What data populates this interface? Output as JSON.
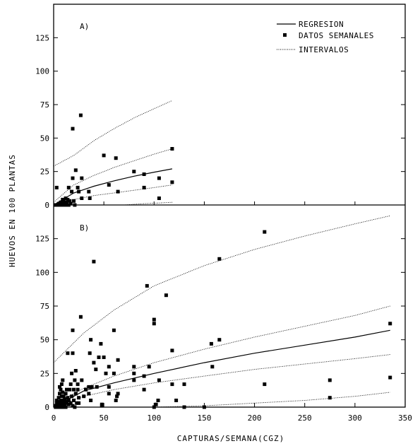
{
  "chart_data": {
    "type": "scatter",
    "ylabel": "HUEVOS EN 100 PLANTAS",
    "xlabel": "CAPTURAS/SEMANA(CGZ)",
    "xlim": [
      0,
      350
    ],
    "x_ticks": [
      "0",
      "50",
      "100",
      "150",
      "200",
      "250",
      "300",
      "350"
    ],
    "x_tick_values": [
      0,
      50,
      100,
      150,
      200,
      250,
      300,
      350
    ],
    "ylim": [
      0,
      150
    ],
    "y_ticks": [
      "0",
      "25",
      "50",
      "75",
      "100",
      "125"
    ],
    "y_tick_values": [
      0,
      25,
      50,
      75,
      100,
      125
    ],
    "grid": false,
    "legend": {
      "placement": "top-right",
      "entries": [
        "REGRESION",
        "DATOS SEMANALES",
        "INTERVALOS"
      ]
    },
    "panels": [
      {
        "label": "A)",
        "xmax": 118,
        "points": [
          [
            2,
            0
          ],
          [
            3,
            13
          ],
          [
            4,
            0
          ],
          [
            5,
            1
          ],
          [
            6,
            0
          ],
          [
            7,
            2
          ],
          [
            7,
            0
          ],
          [
            8,
            1
          ],
          [
            9,
            2
          ],
          [
            9,
            4
          ],
          [
            10,
            0
          ],
          [
            10,
            3
          ],
          [
            11,
            1
          ],
          [
            12,
            5
          ],
          [
            12,
            0
          ],
          [
            13,
            2
          ],
          [
            14,
            4
          ],
          [
            15,
            0
          ],
          [
            15,
            13
          ],
          [
            16,
            3
          ],
          [
            17,
            1
          ],
          [
            18,
            10
          ],
          [
            19,
            20
          ],
          [
            19,
            57
          ],
          [
            20,
            3
          ],
          [
            21,
            0
          ],
          [
            22,
            26
          ],
          [
            24,
            13
          ],
          [
            25,
            10
          ],
          [
            27,
            67
          ],
          [
            28,
            20
          ],
          [
            28,
            5
          ],
          [
            35,
            10
          ],
          [
            36,
            5
          ],
          [
            50,
            37
          ],
          [
            55,
            15
          ],
          [
            62,
            35
          ],
          [
            64,
            10
          ],
          [
            80,
            25
          ],
          [
            90,
            23
          ],
          [
            90,
            13
          ],
          [
            105,
            5
          ],
          [
            105,
            20
          ],
          [
            118,
            42
          ],
          [
            118,
            17
          ]
        ],
        "regression": [
          [
            0,
            0
          ],
          [
            20,
            9
          ],
          [
            40,
            14
          ],
          [
            60,
            18
          ],
          [
            80,
            21.5
          ],
          [
            100,
            24.5
          ],
          [
            118,
            27
          ]
        ],
        "upper_outer": [
          [
            0,
            29
          ],
          [
            20,
            37
          ],
          [
            40,
            48
          ],
          [
            60,
            57
          ],
          [
            80,
            65
          ],
          [
            100,
            72
          ],
          [
            118,
            78
          ]
        ],
        "upper_inner": [
          [
            0,
            2
          ],
          [
            20,
            15
          ],
          [
            40,
            22
          ],
          [
            60,
            28
          ],
          [
            80,
            33
          ],
          [
            100,
            38
          ],
          [
            118,
            42
          ]
        ],
        "lower_inner": [
          [
            0,
            0
          ],
          [
            20,
            4
          ],
          [
            40,
            7
          ],
          [
            60,
            9
          ],
          [
            80,
            11
          ],
          [
            100,
            13
          ],
          [
            118,
            15
          ]
        ],
        "lower_outer": [
          [
            70,
            0
          ],
          [
            90,
            1
          ],
          [
            105,
            1.5
          ],
          [
            118,
            2
          ]
        ]
      },
      {
        "label": "B)",
        "xmax": 335,
        "points": [
          [
            2,
            0
          ],
          [
            2,
            1
          ],
          [
            3,
            3
          ],
          [
            3,
            5
          ],
          [
            4,
            0
          ],
          [
            4,
            2
          ],
          [
            5,
            1
          ],
          [
            5,
            4
          ],
          [
            5,
            7
          ],
          [
            6,
            0
          ],
          [
            6,
            3
          ],
          [
            6,
            10
          ],
          [
            6,
            15
          ],
          [
            7,
            2
          ],
          [
            7,
            5
          ],
          [
            7,
            13
          ],
          [
            8,
            0
          ],
          [
            8,
            3
          ],
          [
            8,
            8
          ],
          [
            8,
            17
          ],
          [
            9,
            1
          ],
          [
            9,
            5
          ],
          [
            9,
            11
          ],
          [
            9,
            20
          ],
          [
            10,
            0
          ],
          [
            10,
            4
          ],
          [
            10,
            8
          ],
          [
            11,
            2
          ],
          [
            11,
            6
          ],
          [
            12,
            0
          ],
          [
            12,
            3
          ],
          [
            12,
            10
          ],
          [
            13,
            4
          ],
          [
            13,
            13
          ],
          [
            14,
            7
          ],
          [
            14,
            40
          ],
          [
            15,
            2
          ],
          [
            15,
            5
          ],
          [
            16,
            13
          ],
          [
            17,
            3
          ],
          [
            17,
            17
          ],
          [
            18,
            8
          ],
          [
            18,
            25
          ],
          [
            19,
            1
          ],
          [
            19,
            40
          ],
          [
            19,
            57
          ],
          [
            20,
            5
          ],
          [
            20,
            13
          ],
          [
            21,
            0
          ],
          [
            21,
            20
          ],
          [
            22,
            10
          ],
          [
            22,
            27
          ],
          [
            23,
            3
          ],
          [
            24,
            13
          ],
          [
            24,
            17
          ],
          [
            25,
            3
          ],
          [
            25,
            7
          ],
          [
            27,
            67
          ],
          [
            28,
            20
          ],
          [
            30,
            8
          ],
          [
            32,
            13
          ],
          [
            35,
            10
          ],
          [
            35,
            15
          ],
          [
            36,
            40
          ],
          [
            37,
            5
          ],
          [
            37,
            50
          ],
          [
            38,
            15
          ],
          [
            40,
            108
          ],
          [
            40,
            33
          ],
          [
            42,
            28
          ],
          [
            43,
            15
          ],
          [
            45,
            37
          ],
          [
            47,
            47
          ],
          [
            48,
            2
          ],
          [
            48,
            1
          ],
          [
            50,
            37
          ],
          [
            52,
            25
          ],
          [
            55,
            10
          ],
          [
            55,
            15
          ],
          [
            55,
            30
          ],
          [
            60,
            25
          ],
          [
            60,
            57
          ],
          [
            62,
            5
          ],
          [
            63,
            8
          ],
          [
            64,
            10
          ],
          [
            64,
            35
          ],
          [
            80,
            30
          ],
          [
            80,
            20
          ],
          [
            80,
            25
          ],
          [
            90,
            13
          ],
          [
            90,
            23
          ],
          [
            93,
            90
          ],
          [
            95,
            30
          ],
          [
            100,
            62
          ],
          [
            100,
            65
          ],
          [
            100,
            0
          ],
          [
            102,
            2
          ],
          [
            104,
            5
          ],
          [
            105,
            20
          ],
          [
            112,
            83
          ],
          [
            118,
            17
          ],
          [
            118,
            42
          ],
          [
            122,
            5
          ],
          [
            130,
            17
          ],
          [
            130,
            0
          ],
          [
            150,
            0
          ],
          [
            157,
            47
          ],
          [
            158,
            30
          ],
          [
            165,
            110
          ],
          [
            165,
            50
          ],
          [
            210,
            130
          ],
          [
            210,
            17
          ],
          [
            275,
            20
          ],
          [
            275,
            7
          ],
          [
            335,
            62
          ],
          [
            335,
            22
          ]
        ],
        "regression": [
          [
            0,
            0
          ],
          [
            30,
            12
          ],
          [
            60,
            18
          ],
          [
            100,
            25
          ],
          [
            150,
            33
          ],
          [
            200,
            40
          ],
          [
            250,
            46
          ],
          [
            300,
            52
          ],
          [
            335,
            57
          ]
        ],
        "upper_outer": [
          [
            0,
            33
          ],
          [
            30,
            55
          ],
          [
            60,
            72
          ],
          [
            100,
            90
          ],
          [
            150,
            105
          ],
          [
            200,
            117
          ],
          [
            250,
            127
          ],
          [
            300,
            136
          ],
          [
            335,
            142
          ]
        ],
        "upper_inner": [
          [
            0,
            2
          ],
          [
            30,
            14
          ],
          [
            60,
            23
          ],
          [
            100,
            33
          ],
          [
            150,
            43
          ],
          [
            200,
            52
          ],
          [
            250,
            60
          ],
          [
            300,
            68
          ],
          [
            335,
            75
          ]
        ],
        "lower_inner": [
          [
            0,
            0
          ],
          [
            30,
            8
          ],
          [
            60,
            13
          ],
          [
            100,
            18
          ],
          [
            150,
            23
          ],
          [
            200,
            28
          ],
          [
            250,
            32
          ],
          [
            300,
            36
          ],
          [
            335,
            39
          ]
        ],
        "lower_outer": [
          [
            100,
            0
          ],
          [
            150,
            1
          ],
          [
            200,
            3
          ],
          [
            250,
            5
          ],
          [
            300,
            8
          ],
          [
            335,
            11
          ]
        ]
      }
    ]
  }
}
